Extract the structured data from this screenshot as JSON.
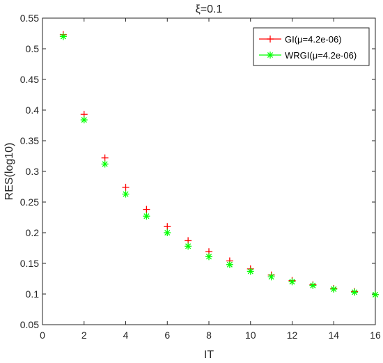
{
  "chart_data": {
    "type": "scatter",
    "title": "ξ=0.1",
    "xlabel": "IT",
    "ylabel": "RES(log10)",
    "xlim": [
      0,
      16
    ],
    "ylim": [
      0.05,
      0.55
    ],
    "xticks": [
      0,
      2,
      4,
      6,
      8,
      10,
      12,
      14,
      16
    ],
    "yticks": [
      0.05,
      0.1,
      0.15,
      0.2,
      0.25,
      0.3,
      0.35,
      0.4,
      0.45,
      0.5,
      0.55
    ],
    "grid": false,
    "legend_position": "top-right",
    "series": [
      {
        "name": "GI(μ=4.2e-06)",
        "marker": "plus",
        "color": "#ff0000",
        "x": [
          1,
          2,
          3,
          4,
          5,
          6,
          7,
          8,
          9,
          10,
          11,
          12,
          13,
          14,
          15,
          16
        ],
        "y": [
          0.523,
          0.393,
          0.322,
          0.274,
          0.238,
          0.21,
          0.187,
          0.169,
          0.154,
          0.141,
          0.131,
          0.122,
          0.115,
          0.109,
          0.104,
          0.099
        ]
      },
      {
        "name": "WRGI(μ=4.2e-06)",
        "marker": "asterisk",
        "color": "#00ff00",
        "x": [
          1,
          2,
          3,
          4,
          5,
          6,
          7,
          8,
          9,
          10,
          11,
          12,
          13,
          14,
          15,
          16
        ],
        "y": [
          0.52,
          0.384,
          0.312,
          0.263,
          0.227,
          0.2,
          0.178,
          0.161,
          0.148,
          0.137,
          0.128,
          0.12,
          0.114,
          0.108,
          0.103,
          0.099
        ]
      }
    ]
  }
}
